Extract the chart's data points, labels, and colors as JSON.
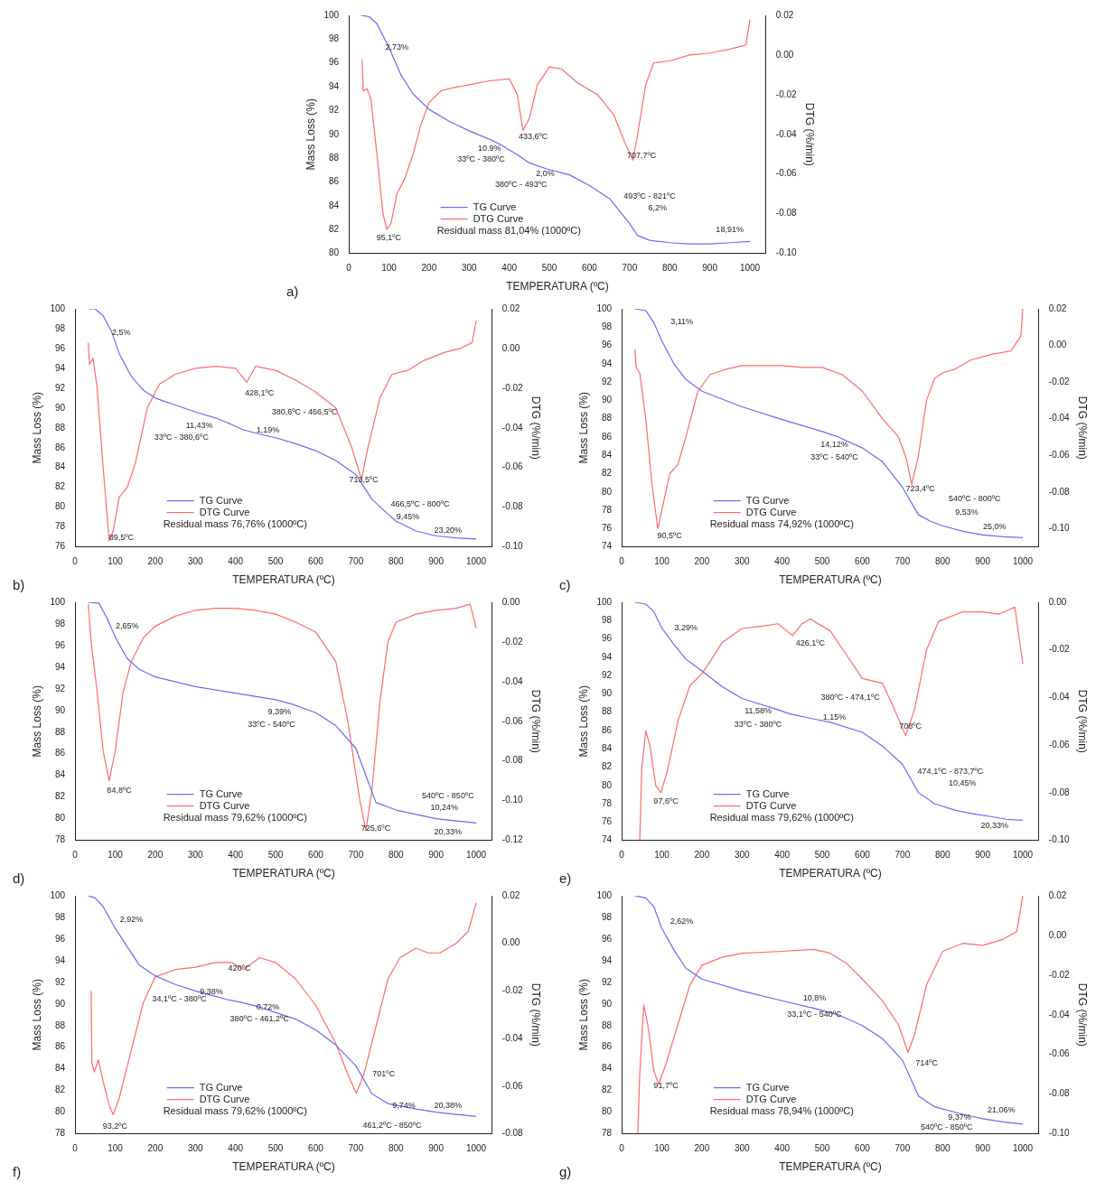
{
  "chart_data": [
    {
      "type": "line",
      "xlabel": "TEMPERATURA (ºC)",
      "ylabel": "Mass Loss (%)",
      "y2label": "DTG (%/min)",
      "xlim": [
        0,
        1040
      ],
      "xticks": [
        0,
        100,
        200,
        300,
        400,
        500,
        600,
        700,
        800,
        900,
        1000
      ],
      "ylim": [
        80,
        100
      ],
      "yticks": [
        80,
        82,
        84,
        86,
        88,
        90,
        92,
        94,
        96,
        98,
        100
      ],
      "y2lim": [
        -0.1,
        0.02
      ],
      "y2ticks": [
        {
          "value": 0.02,
          "label": "0.02"
        },
        {
          "value": 0,
          "label": "0.00"
        },
        {
          "value": -0.02,
          "label": "-0.02"
        },
        {
          "value": -0.04,
          "label": "-0.04"
        },
        {
          "value": -0.06,
          "label": "-0.06"
        },
        {
          "value": -0.08,
          "label": "-0.08"
        },
        {
          "value": -0.1,
          "label": "-0.10"
        }
      ],
      "grid": false,
      "legend": "bottom",
      "marker": "none",
      "line_style": "solid",
      "series": [
        {
          "name": "TG Curve",
          "color": "#6b6bf5",
          "x": [
            30,
            50,
            70,
            100,
            130,
            160,
            200,
            250,
            300,
            350,
            380,
            420,
            450,
            493,
            550,
            600,
            650,
            700,
            720,
            750,
            800,
            850,
            900,
            950,
            1000
          ],
          "values": [
            100,
            99.9,
            99.3,
            97.3,
            95,
            93.4,
            92.1,
            91.1,
            90.3,
            89.6,
            89.1,
            88.3,
            87.6,
            87.1,
            86.6,
            85.7,
            84.6,
            82.5,
            81.5,
            81.1,
            80.9,
            80.8,
            80.8,
            80.9,
            81.0
          ]
        },
        {
          "name": "DTG Curve",
          "color": "#ff6b6b",
          "axis": "y2",
          "x": [
            33,
            36,
            45,
            55,
            70,
            85,
            95,
            105,
            120,
            140,
            160,
            180,
            200,
            230,
            270,
            300,
            350,
            400,
            420,
            434,
            450,
            470,
            500,
            530,
            570,
            620,
            660,
            690,
            708,
            720,
            740,
            760,
            800,
            850,
            900,
            950,
            990,
            1000
          ],
          "values": [
            -0.002,
            -0.018,
            -0.017,
            -0.022,
            -0.05,
            -0.08,
            -0.088,
            -0.085,
            -0.07,
            -0.062,
            -0.05,
            -0.035,
            -0.024,
            -0.018,
            -0.016,
            -0.015,
            -0.013,
            -0.012,
            -0.02,
            -0.038,
            -0.032,
            -0.015,
            -0.006,
            -0.007,
            -0.014,
            -0.02,
            -0.03,
            -0.045,
            -0.053,
            -0.04,
            -0.015,
            -0.004,
            -0.003,
            0,
            0.001,
            0.003,
            0.005,
            0.018
          ]
        }
      ],
      "annotations": [
        "a)",
        "Residual mass 81,04% (1000ºC)",
        "2,73%",
        "433,6ºC",
        "707,7ºC",
        "10.9%",
        "33ºC - 380ºC",
        "2,0%",
        "380ºC - 493ºC",
        "493ºC - 821ºC",
        "6,2%",
        "95,1ºC",
        "18,91%"
      ]
    },
    {
      "type": "line",
      "xlabel": "TEMPERATURA (ºC)",
      "ylabel": "Mass Loss (%)",
      "y2label": "DTG (%/min)",
      "xlim": [
        0,
        1040
      ],
      "xticks": [
        0,
        100,
        200,
        300,
        400,
        500,
        600,
        700,
        800,
        900,
        1000
      ],
      "ylim": [
        76,
        100
      ],
      "yticks": [
        76,
        78,
        80,
        82,
        84,
        86,
        88,
        90,
        92,
        94,
        96,
        98,
        100
      ],
      "y2lim": [
        -0.1,
        0.02
      ],
      "y2ticks": [
        {
          "value": 0.02,
          "label": "0.02"
        },
        {
          "value": 0,
          "label": "0.00"
        },
        {
          "value": -0.02,
          "label": "-0.02"
        },
        {
          "value": -0.04,
          "label": "-0.04"
        },
        {
          "value": -0.06,
          "label": "-0.06"
        },
        {
          "value": -0.08,
          "label": "-0.08"
        },
        {
          "value": -0.1,
          "label": "-0.10"
        }
      ],
      "grid": false,
      "legend": "bottom",
      "marker": "none",
      "line_style": "solid",
      "series": [
        {
          "name": "TG Curve",
          "color": "#6b6bf5",
          "x": [
            33,
            50,
            70,
            90,
            110,
            140,
            170,
            200,
            250,
            300,
            350,
            381,
            420,
            467,
            500,
            550,
            600,
            650,
            700,
            740,
            780,
            800,
            850,
            900,
            950,
            1000
          ],
          "values": [
            100,
            100,
            99.3,
            97.8,
            95.5,
            93.2,
            91.8,
            91.0,
            90.3,
            89.6,
            89.0,
            88.5,
            87.8,
            87.3,
            87.0,
            86.4,
            85.7,
            84.7,
            83.3,
            80.8,
            79.3,
            78.6,
            77.6,
            77.1,
            76.9,
            76.8
          ]
        },
        {
          "name": "DTG Curve",
          "color": "#ff6b6b",
          "axis": "y2",
          "x": [
            33,
            36,
            45,
            55,
            70,
            85,
            95,
            110,
            130,
            150,
            180,
            210,
            250,
            300,
            350,
            400,
            428,
            450,
            500,
            550,
            600,
            650,
            690,
            714,
            730,
            760,
            790,
            830,
            870,
            920,
            960,
            990,
            1000
          ],
          "values": [
            0.003,
            -0.008,
            -0.005,
            -0.02,
            -0.06,
            -0.097,
            -0.092,
            -0.075,
            -0.07,
            -0.058,
            -0.03,
            -0.018,
            -0.013,
            -0.01,
            -0.009,
            -0.01,
            -0.017,
            -0.009,
            -0.011,
            -0.016,
            -0.022,
            -0.03,
            -0.05,
            -0.066,
            -0.05,
            -0.025,
            -0.013,
            -0.011,
            -0.006,
            -0.002,
            0,
            0.003,
            0.014
          ]
        }
      ],
      "annotations": [
        "b)",
        "Residual mass 76,76% (1000ºC)",
        "2,5%",
        "428,1ºC",
        "380,6ºC - 466,5ºC",
        "11,43%",
        "1,19%",
        "33ºC - 380,6ºC",
        "713,5ºC",
        "466,5ºC - 800ºC",
        "9,45%",
        "89,5ºC",
        "23,20%"
      ]
    },
    {
      "type": "line",
      "xlabel": "TEMPERATURA (ºC)",
      "ylabel": "Mass Loss (%)",
      "y2label": "DTG (%/min)",
      "xlim": [
        0,
        1040
      ],
      "xticks": [
        0,
        100,
        200,
        300,
        400,
        500,
        600,
        700,
        800,
        900,
        1000
      ],
      "ylim": [
        74,
        100
      ],
      "yticks": [
        74,
        76,
        78,
        80,
        82,
        84,
        86,
        88,
        90,
        92,
        94,
        96,
        98,
        100
      ],
      "y2lim": [
        -0.11,
        0.02
      ],
      "y2ticks": [
        {
          "value": 0.02,
          "label": "0.02"
        },
        {
          "value": 0,
          "label": "0.00"
        },
        {
          "value": -0.02,
          "label": "-0.02"
        },
        {
          "value": -0.04,
          "label": "-0.04"
        },
        {
          "value": -0.06,
          "label": "-0.06"
        },
        {
          "value": -0.08,
          "label": "-0.08"
        },
        {
          "value": -0.1,
          "label": "-0.10"
        }
      ],
      "grid": false,
      "legend": "bottom",
      "marker": "none",
      "line_style": "solid",
      "series": [
        {
          "name": "TG Curve",
          "color": "#6b6bf5",
          "x": [
            33,
            60,
            80,
            100,
            130,
            160,
            200,
            300,
            400,
            500,
            540,
            600,
            650,
            700,
            740,
            770,
            800,
            850,
            900,
            950,
            1000
          ],
          "values": [
            100,
            99.8,
            98.5,
            96.5,
            94,
            92.3,
            91,
            89.3,
            87.9,
            86.6,
            86.0,
            84.8,
            83.3,
            80.5,
            77.5,
            76.8,
            76.3,
            75.7,
            75.3,
            75.1,
            75.0
          ]
        },
        {
          "name": "DTG Curve",
          "color": "#ff6b6b",
          "axis": "y2",
          "x": [
            33,
            36,
            45,
            60,
            75,
            90,
            105,
            120,
            140,
            160,
            190,
            220,
            260,
            300,
            400,
            450,
            500,
            550,
            600,
            650,
            690,
            710,
            723,
            740,
            760,
            780,
            800,
            830,
            870,
            920,
            970,
            995,
            1000
          ],
          "values": [
            -0.002,
            -0.012,
            -0.015,
            -0.04,
            -0.075,
            -0.1,
            -0.085,
            -0.07,
            -0.065,
            -0.05,
            -0.025,
            -0.016,
            -0.013,
            -0.011,
            -0.011,
            -0.012,
            -0.012,
            -0.016,
            -0.025,
            -0.04,
            -0.05,
            -0.062,
            -0.076,
            -0.06,
            -0.03,
            -0.018,
            -0.015,
            -0.013,
            -0.008,
            -0.005,
            -0.003,
            0.005,
            0.02
          ]
        }
      ],
      "annotations": [
        "c)",
        "Residual mass 74,92% (1000ºC)",
        "3,11%",
        "14,12%",
        "33ºC - 540ºC",
        "723,4ºC",
        "540ºC - 800ºC",
        "9,53%",
        "90,5ºC",
        "25,0%"
      ]
    },
    {
      "type": "line",
      "xlabel": "TEMPERATURA (ºC)",
      "ylabel": "Mass Loss (%)",
      "y2label": "DTG (%/min)",
      "xlim": [
        0,
        1040
      ],
      "xticks": [
        0,
        100,
        200,
        300,
        400,
        500,
        600,
        700,
        800,
        900,
        1000
      ],
      "ylim": [
        78,
        100
      ],
      "yticks": [
        78,
        80,
        82,
        84,
        86,
        88,
        90,
        92,
        94,
        96,
        98,
        100
      ],
      "y2lim": [
        -0.12,
        0
      ],
      "y2ticks": [
        {
          "value": 0,
          "label": "0.00"
        },
        {
          "value": -0.02,
          "label": "-0.02"
        },
        {
          "value": -0.04,
          "label": "-0.04"
        },
        {
          "value": -0.06,
          "label": "-0.06"
        },
        {
          "value": -0.08,
          "label": "-0.08"
        },
        {
          "value": -0.1,
          "label": "-0.10"
        },
        {
          "value": -0.12,
          "label": "-0.12"
        }
      ],
      "grid": false,
      "legend": "bottom",
      "marker": "none",
      "line_style": "solid",
      "series": [
        {
          "name": "TG Curve",
          "color": "#6b6bf5",
          "x": [
            33,
            60,
            80,
            100,
            130,
            160,
            200,
            300,
            400,
            500,
            540,
            600,
            650,
            700,
            730,
            750,
            800,
            850,
            900,
            950,
            1000
          ],
          "values": [
            100,
            99.9,
            98.5,
            96.8,
            94.8,
            93.8,
            93.1,
            92.2,
            91.6,
            91.0,
            90.6,
            89.8,
            88.6,
            86.5,
            83.5,
            81.5,
            80.8,
            80.4,
            80.0,
            79.8,
            79.6
          ]
        },
        {
          "name": "DTG Curve",
          "color": "#ff6b6b",
          "axis": "y2",
          "x": [
            33,
            40,
            55,
            70,
            85,
            100,
            120,
            140,
            170,
            200,
            250,
            300,
            350,
            400,
            450,
            500,
            550,
            600,
            650,
            680,
            710,
            725,
            740,
            760,
            780,
            800,
            850,
            900,
            950,
            985,
            1000
          ],
          "values": [
            -0.001,
            -0.02,
            -0.045,
            -0.075,
            -0.09,
            -0.075,
            -0.045,
            -0.03,
            -0.018,
            -0.012,
            -0.007,
            -0.004,
            -0.003,
            -0.003,
            -0.004,
            -0.006,
            -0.01,
            -0.015,
            -0.03,
            -0.06,
            -0.1,
            -0.115,
            -0.095,
            -0.05,
            -0.02,
            -0.01,
            -0.006,
            -0.004,
            -0.003,
            -0.001,
            -0.013
          ]
        }
      ],
      "annotations": [
        "d)",
        "Residual mass 79,62% (1000ºC)",
        "2,65%",
        "9,39%",
        "33ºC - 540ºC",
        "84,8ºC",
        "540ºC - 850ºC",
        "10,24%",
        "725,6ºC",
        "20,33%"
      ]
    },
    {
      "type": "line",
      "xlabel": "TEMPERATURA (ºC)",
      "ylabel": "Mass Loss (%)",
      "y2label": "DTG (%/min)",
      "xlim": [
        0,
        1040
      ],
      "xticks": [
        0,
        100,
        200,
        300,
        400,
        500,
        600,
        700,
        800,
        900,
        1000
      ],
      "ylim": [
        74,
        100
      ],
      "yticks": [
        74,
        76,
        78,
        80,
        82,
        84,
        86,
        88,
        90,
        92,
        94,
        96,
        98,
        100
      ],
      "y2lim": [
        -0.1,
        0
      ],
      "y2ticks": [
        {
          "value": 0,
          "label": "0.00"
        },
        {
          "value": -0.02,
          "label": "-0.02"
        },
        {
          "value": -0.04,
          "label": "-0.04"
        },
        {
          "value": -0.06,
          "label": "-0.06"
        },
        {
          "value": -0.08,
          "label": "-0.08"
        },
        {
          "value": -0.1,
          "label": "-0.10"
        }
      ],
      "grid": false,
      "legend": "bottom",
      "marker": "none",
      "line_style": "solid",
      "series": [
        {
          "name": "TG Curve",
          "color": "#6b6bf5",
          "x": [
            33,
            60,
            80,
            100,
            130,
            160,
            200,
            250,
            300,
            350,
            380,
            420,
            474,
            520,
            600,
            650,
            700,
            740,
            780,
            830,
            874,
            920,
            960,
            1000
          ],
          "values": [
            100,
            99.8,
            99,
            97.2,
            95.4,
            93.8,
            92.5,
            90.8,
            89.5,
            88.8,
            88.4,
            87.8,
            87.3,
            86.9,
            85.8,
            84.3,
            82.3,
            79.2,
            78,
            77.3,
            76.9,
            76.6,
            76.3,
            76.2
          ]
        },
        {
          "name": "DTG Curve",
          "color": "#ff6b6b",
          "axis": "y2",
          "x": [
            45,
            50,
            60,
            70,
            85,
            98,
            115,
            140,
            170,
            200,
            220,
            250,
            300,
            350,
            390,
            426,
            450,
            470,
            520,
            560,
            600,
            650,
            680,
            708,
            730,
            760,
            790,
            850,
            900,
            940,
            980,
            1000
          ],
          "values": [
            -0.1,
            -0.07,
            -0.054,
            -0.06,
            -0.077,
            -0.08,
            -0.07,
            -0.05,
            -0.035,
            -0.03,
            -0.025,
            -0.017,
            -0.011,
            -0.01,
            -0.009,
            -0.014,
            -0.009,
            -0.007,
            -0.012,
            -0.022,
            -0.032,
            -0.034,
            -0.045,
            -0.056,
            -0.045,
            -0.02,
            -0.008,
            -0.004,
            -0.004,
            -0.005,
            -0.002,
            -0.026
          ]
        }
      ],
      "annotations": [
        "e)",
        "Residual mass 79,62% (1000ºC)",
        "3,29%",
        "426,1ºC",
        "380ºC - 474,1ºC",
        "11,58%",
        "1,15%",
        "33ºC - 380ºC",
        "708ºC",
        "474,1ºC - 873,7ºC",
        "10,45%",
        "97,6ºC",
        "20,33%"
      ]
    },
    {
      "type": "line",
      "xlabel": "TEMPERATURA (ºC)",
      "ylabel": "Mass Loss (%)",
      "y2label": "DTG (%/min)",
      "xlim": [
        0,
        1040
      ],
      "xticks": [
        0,
        100,
        200,
        300,
        400,
        500,
        600,
        700,
        800,
        900,
        1000
      ],
      "ylim": [
        78,
        100
      ],
      "yticks": [
        78,
        80,
        82,
        84,
        86,
        88,
        90,
        92,
        94,
        96,
        98,
        100
      ],
      "y2lim": [
        -0.08,
        0.02
      ],
      "y2ticks": [
        {
          "value": 0.02,
          "label": "0.02"
        },
        {
          "value": 0,
          "label": "0.00"
        },
        {
          "value": -0.02,
          "label": "-0.02"
        },
        {
          "value": -0.04,
          "label": "-0.04"
        },
        {
          "value": -0.06,
          "label": "-0.06"
        },
        {
          "value": -0.08,
          "label": "-0.08"
        }
      ],
      "grid": false,
      "legend": "bottom",
      "marker": "none",
      "line_style": "solid",
      "series": [
        {
          "name": "TG Curve",
          "color": "#6b6bf5",
          "x": [
            33,
            50,
            70,
            100,
            130,
            160,
            200,
            250,
            300,
            350,
            380,
            420,
            461,
            500,
            550,
            600,
            650,
            700,
            740,
            780,
            850,
            900,
            950,
            1000
          ],
          "values": [
            100,
            99.8,
            99,
            97,
            95.3,
            93.6,
            92.6,
            91.8,
            91.2,
            90.7,
            90.4,
            90.1,
            89.7,
            89.2,
            88.6,
            87.6,
            86.2,
            84.3,
            81.7,
            80.8,
            80.3,
            80.0,
            79.8,
            79.6
          ]
        },
        {
          "name": "DTG Curve",
          "color": "#ff6b6b",
          "axis": "y2",
          "x": [
            40,
            42,
            48,
            58,
            70,
            85,
            95,
            110,
            140,
            170,
            200,
            250,
            300,
            350,
            390,
            420,
            460,
            500,
            550,
            600,
            650,
            680,
            701,
            720,
            750,
            780,
            810,
            850,
            880,
            910,
            950,
            980,
            1000
          ],
          "values": [
            -0.02,
            -0.05,
            -0.054,
            -0.049,
            -0.058,
            -0.068,
            -0.072,
            -0.065,
            -0.045,
            -0.025,
            -0.014,
            -0.011,
            -0.01,
            -0.008,
            -0.008,
            -0.011,
            -0.006,
            -0.008,
            -0.015,
            -0.026,
            -0.042,
            -0.055,
            -0.063,
            -0.055,
            -0.035,
            -0.015,
            -0.006,
            -0.002,
            -0.004,
            -0.004,
            0,
            0.005,
            0.017
          ]
        }
      ],
      "annotations": [
        "f)",
        "Residual mass 79,62% (1000ºC)",
        "2,92%",
        "420ºC",
        "9,38%",
        "34,1ºC - 380ºC",
        "0,72%",
        "380ºC - 461,2ºC",
        "701ºC",
        "9,74%",
        "20,38%",
        "93,2ºC",
        "461,2ºC - 850ºC"
      ]
    },
    {
      "type": "line",
      "xlabel": "TEMPERATURA (ºC)",
      "ylabel": "Mass Loss (%)",
      "y2label": "DTG (%/min)",
      "xlim": [
        0,
        1040
      ],
      "xticks": [
        0,
        100,
        200,
        300,
        400,
        500,
        600,
        700,
        800,
        900,
        1000
      ],
      "ylim": [
        78,
        100
      ],
      "yticks": [
        78,
        80,
        82,
        84,
        86,
        88,
        90,
        92,
        94,
        96,
        98,
        100
      ],
      "y2lim": [
        -0.1,
        0.02
      ],
      "y2ticks": [
        {
          "value": 0.02,
          "label": "0.02"
        },
        {
          "value": 0,
          "label": "0.00"
        },
        {
          "value": -0.02,
          "label": "-0.02"
        },
        {
          "value": -0.04,
          "label": "-0.04"
        },
        {
          "value": -0.06,
          "label": "-0.06"
        },
        {
          "value": -0.08,
          "label": "-0.08"
        },
        {
          "value": -0.1,
          "label": "-0.10"
        }
      ],
      "grid": false,
      "legend": "bottom",
      "marker": "none",
      "line_style": "solid",
      "series": [
        {
          "name": "TG Curve",
          "color": "#6b6bf5",
          "x": [
            33,
            60,
            80,
            100,
            130,
            160,
            200,
            300,
            400,
            480,
            540,
            600,
            650,
            700,
            740,
            780,
            850,
            900,
            950,
            1000
          ],
          "values": [
            100,
            99.8,
            99,
            97,
            95,
            93.3,
            92.3,
            91.2,
            90.3,
            89.6,
            89.0,
            88.0,
            86.8,
            84.8,
            81.5,
            80.5,
            79.8,
            79.4,
            79.1,
            78.9
          ]
        },
        {
          "name": "DTG Curve",
          "color": "#ff6b6b",
          "axis": "y2",
          "x": [
            40,
            45,
            55,
            65,
            80,
            92,
            110,
            140,
            170,
            200,
            250,
            300,
            400,
            480,
            520,
            560,
            600,
            650,
            690,
            714,
            730,
            760,
            800,
            850,
            900,
            950,
            985,
            1000
          ],
          "values": [
            -0.1,
            -0.07,
            -0.035,
            -0.045,
            -0.068,
            -0.075,
            -0.065,
            -0.045,
            -0.025,
            -0.015,
            -0.011,
            -0.009,
            -0.008,
            -0.007,
            -0.009,
            -0.014,
            -0.022,
            -0.033,
            -0.045,
            -0.059,
            -0.05,
            -0.025,
            -0.008,
            -0.004,
            -0.005,
            -0.002,
            0.002,
            0.02
          ]
        }
      ],
      "annotations": [
        "g)",
        "Residual mass 78,94% (1000ºC)",
        "2,62%",
        "10,8%",
        "33,1ºC - 540ºC",
        "714ºC",
        "91,7ºC",
        "9,37%",
        "21,06%",
        "540ºC - 850ºC"
      ]
    }
  ]
}
